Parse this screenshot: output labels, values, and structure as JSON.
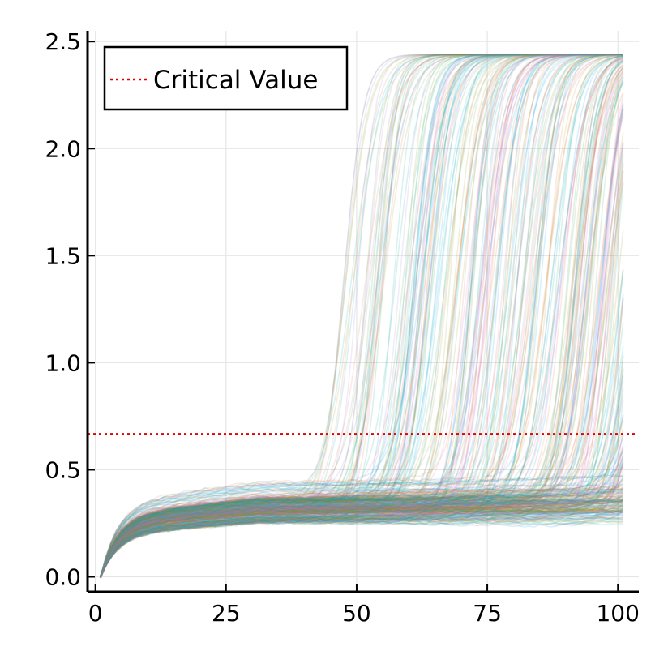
{
  "chart_data": {
    "type": "line",
    "title": "",
    "xlabel": "",
    "ylabel": "",
    "xlim": [
      -1.5,
      104
    ],
    "ylim": [
      -0.07,
      2.55
    ],
    "x_ticks": [
      0,
      25,
      50,
      75,
      100
    ],
    "x_tick_labels": [
      "0",
      "25",
      "50",
      "75",
      "100"
    ],
    "y_ticks": [
      0.0,
      0.5,
      1.0,
      1.5,
      2.0,
      2.5
    ],
    "y_tick_labels": [
      "0.0",
      "0.5",
      "1.0",
      "1.5",
      "2.0",
      "2.5"
    ],
    "grid": true,
    "legend_position": "top-left",
    "x_range": [
      1,
      101
    ],
    "trajectories": {
      "count": 400,
      "start_value": 0.0,
      "plateau_low": [
        0.25,
        0.45
      ],
      "plateau_high": 2.44,
      "transition_x_range": [
        45,
        101
      ],
      "alpha": 0.15
    },
    "series": [
      {
        "name": "Critical Value",
        "type": "hline",
        "y": 0.667,
        "color": "#e00000",
        "style": "dotted"
      }
    ],
    "palette": [
      "#009af9",
      "#e26f46",
      "#3ea44e",
      "#c270d2",
      "#ad8000",
      "#00a9ad",
      "#ed5e93",
      "#c68224",
      "#00a98d",
      "#8e971e",
      "#00a8cb",
      "#9b7fe8"
    ]
  }
}
